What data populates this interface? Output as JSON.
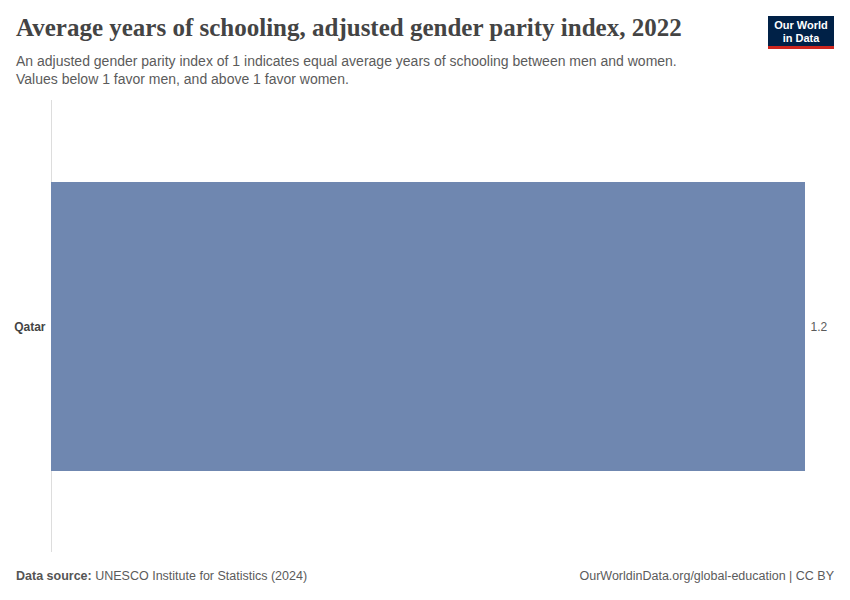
{
  "chart_data": {
    "type": "bar",
    "orientation": "horizontal",
    "title": "Average years of schooling, adjusted gender parity index, 2022",
    "subtitle": [
      "An adjusted gender parity index of 1 indicates equal average years of schooling between men and women.",
      "Values below 1 favor men, and above 1 favor women."
    ],
    "categories": [
      "Qatar"
    ],
    "values": [
      1.2
    ],
    "color": "#6f87b0",
    "xlim": [
      0,
      1.2
    ],
    "data_labels": true,
    "tick_labels": "y",
    "grid": false,
    "logo": [
      "Our World",
      "in Data"
    ],
    "source_label": "Data source:",
    "source": "UNESCO Institute for Statistics (2024)",
    "credit": "OurWorldinData.org/global-education | CC BY"
  }
}
